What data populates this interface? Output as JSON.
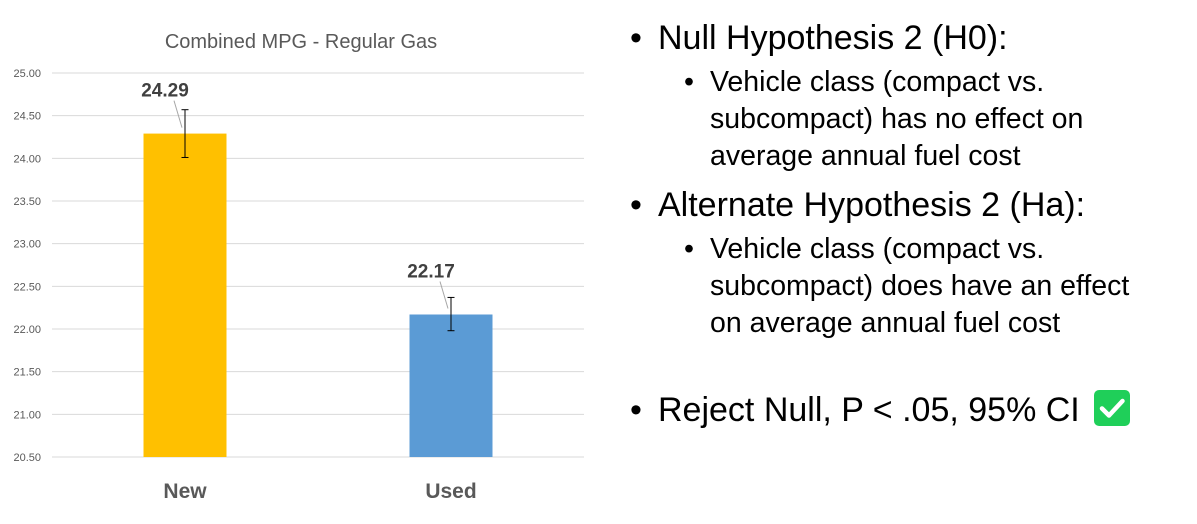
{
  "chart_data": {
    "type": "bar",
    "title": "Combined MPG - Regular Gas",
    "categories": [
      "New",
      "Used"
    ],
    "values": [
      24.29,
      22.17
    ],
    "data_labels": [
      "24.29",
      "22.17"
    ],
    "error_bars": [
      [
        24.01,
        24.57
      ],
      [
        21.98,
        22.37
      ]
    ],
    "colors": [
      "#ffc000",
      "#5b9bd5"
    ],
    "ylim": [
      20.5,
      25.0
    ],
    "yticks": [
      "25.00",
      "24.50",
      "24.00",
      "23.50",
      "23.00",
      "22.50",
      "22.00",
      "21.50",
      "21.00",
      "20.50"
    ],
    "ytick_values": [
      25.0,
      24.5,
      24.0,
      23.5,
      23.0,
      22.5,
      22.0,
      21.5,
      21.0,
      20.5
    ],
    "grid": true,
    "xlabel": "",
    "ylabel": ""
  },
  "bullets": {
    "h0_title": "Null Hypothesis 2 (H0):",
    "h0_line1": "Vehicle class (compact vs.",
    "h0_line2": "subcompact) has no effect on",
    "h0_line3": "average annual fuel cost",
    "ha_title": "Alternate Hypothesis 2 (Ha):",
    "ha_line1": "Vehicle class (compact vs.",
    "ha_line2": "subcompact) does have an effect",
    "ha_line3": "on average annual fuel cost",
    "conclusion": "Reject Null, P < .05, 95% CI",
    "check_icon": "checkmark-icon",
    "check_color": "#1fcf59"
  }
}
